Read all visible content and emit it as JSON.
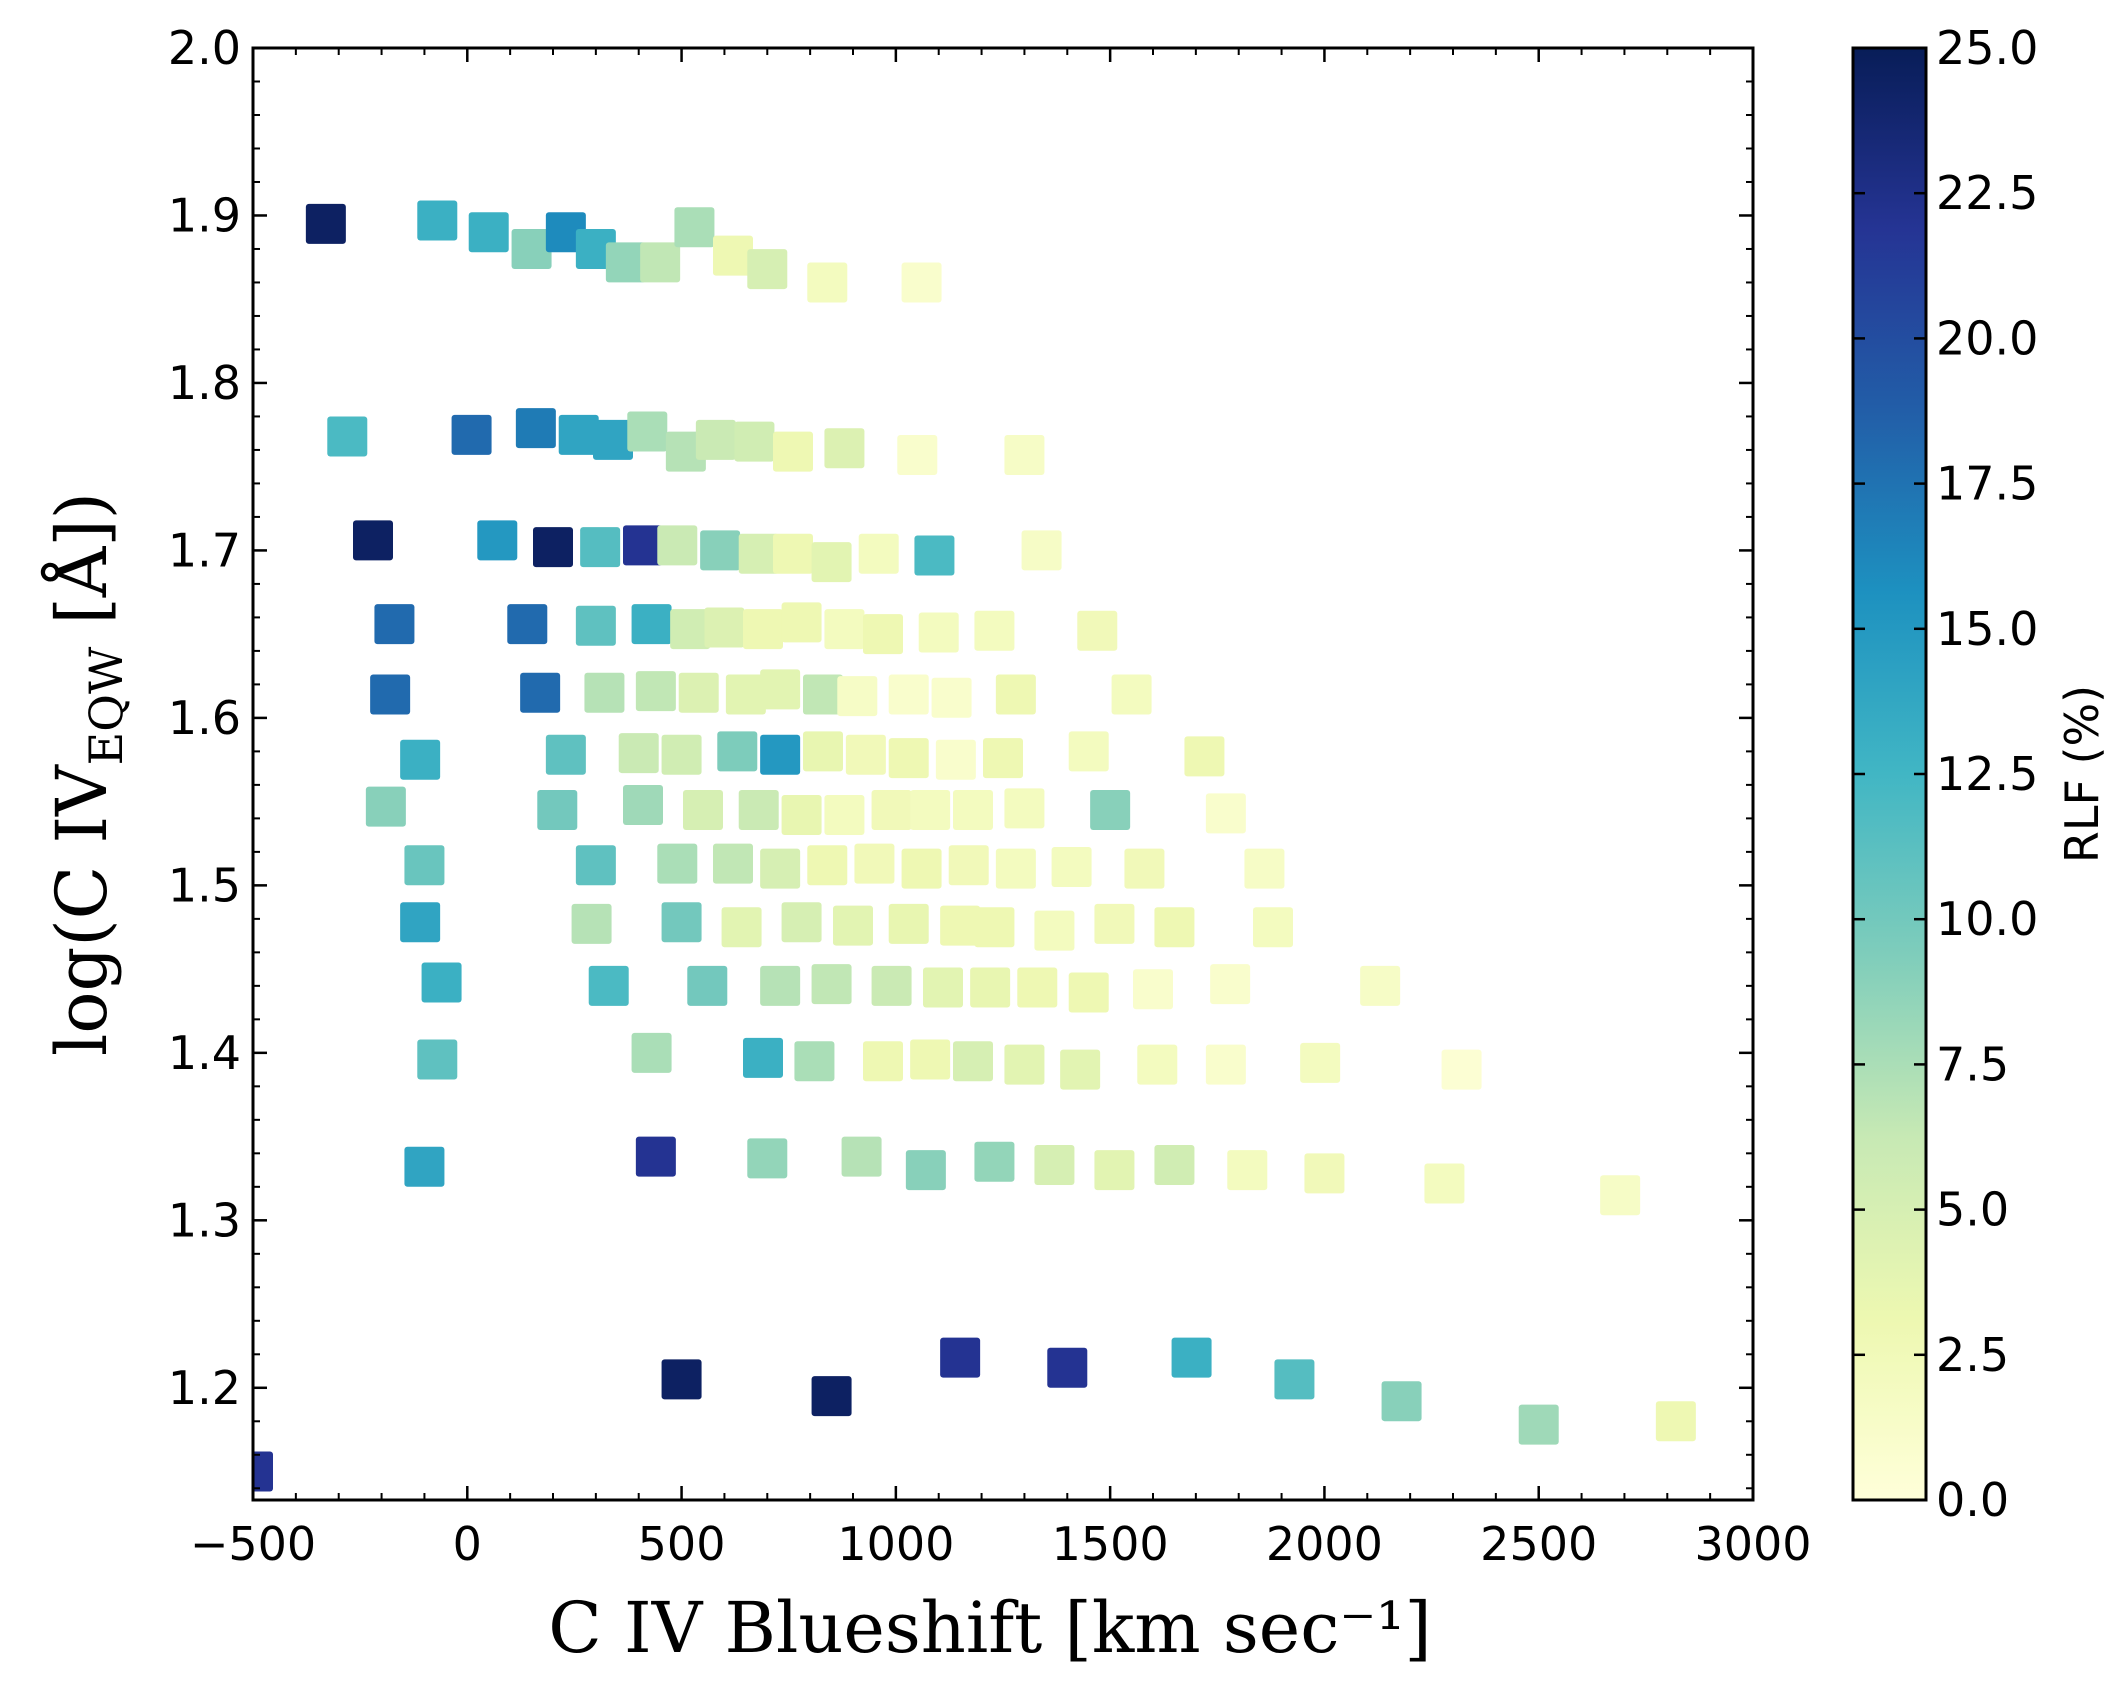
{
  "chart_data": {
    "type": "scatter",
    "xlabel": "C IV Blueshift [km sec⁻¹]",
    "ylabel": "log(C IV_EQW [Å])",
    "ylabel_main": "log(C IV",
    "ylabel_sub": "EQW",
    "ylabel_tail": " [Å])",
    "xlim": [
      -500,
      3000
    ],
    "ylim": [
      1.133,
      2.0
    ],
    "xticks": [
      "−500",
      "0",
      "500",
      "1000",
      "1500",
      "2000",
      "2500",
      "3000"
    ],
    "xtick_values": [
      -500,
      0,
      500,
      1000,
      1500,
      2000,
      2500,
      3000
    ],
    "yticks": [
      "1.2",
      "1.3",
      "1.4",
      "1.5",
      "1.6",
      "1.7",
      "1.8",
      "1.9",
      "2.0"
    ],
    "ytick_values": [
      1.2,
      1.3,
      1.4,
      1.5,
      1.6,
      1.7,
      1.8,
      1.9,
      2.0
    ],
    "grid": false,
    "marker": "square",
    "colorbar": {
      "label": "RLF (%)",
      "min": 0,
      "max": 25,
      "ticks": [
        "0.0",
        "2.5",
        "5.0",
        "7.5",
        "10.0",
        "12.5",
        "15.0",
        "17.5",
        "20.0",
        "22.5",
        "25.0"
      ],
      "tick_values": [
        0,
        2.5,
        5,
        7.5,
        10,
        12.5,
        15,
        17.5,
        20,
        22.5,
        25
      ],
      "colormap": [
        "#ffffd9",
        "#edf8b1",
        "#c7e9b4",
        "#7fcdbb",
        "#41b6c4",
        "#1d91c0",
        "#225ea8",
        "#253494",
        "#081d58"
      ]
    },
    "points": [
      {
        "x": -330,
        "y": 1.895,
        "c": 24.5
      },
      {
        "x": -70,
        "y": 1.897,
        "c": 13
      },
      {
        "x": 50,
        "y": 1.89,
        "c": 13
      },
      {
        "x": 150,
        "y": 1.88,
        "c": 9
      },
      {
        "x": 230,
        "y": 1.89,
        "c": 16
      },
      {
        "x": 300,
        "y": 1.88,
        "c": 13
      },
      {
        "x": 370,
        "y": 1.872,
        "c": 8.5
      },
      {
        "x": 450,
        "y": 1.872,
        "c": 6.5
      },
      {
        "x": 530,
        "y": 1.893,
        "c": 7.5
      },
      {
        "x": 620,
        "y": 1.876,
        "c": 3
      },
      {
        "x": 700,
        "y": 1.868,
        "c": 5
      },
      {
        "x": 840,
        "y": 1.86,
        "c": 2
      },
      {
        "x": 1060,
        "y": 1.86,
        "c": 1
      },
      {
        "x": -280,
        "y": 1.768,
        "c": 12
      },
      {
        "x": 10,
        "y": 1.769,
        "c": 18
      },
      {
        "x": 160,
        "y": 1.773,
        "c": 17
      },
      {
        "x": 260,
        "y": 1.769,
        "c": 14
      },
      {
        "x": 340,
        "y": 1.766,
        "c": 14
      },
      {
        "x": 420,
        "y": 1.771,
        "c": 7.5
      },
      {
        "x": 510,
        "y": 1.759,
        "c": 7
      },
      {
        "x": 580,
        "y": 1.766,
        "c": 6
      },
      {
        "x": 670,
        "y": 1.765,
        "c": 5.5
      },
      {
        "x": 760,
        "y": 1.759,
        "c": 3
      },
      {
        "x": 880,
        "y": 1.761,
        "c": 4.5
      },
      {
        "x": 1050,
        "y": 1.757,
        "c": 1
      },
      {
        "x": 1300,
        "y": 1.757,
        "c": 1.5
      },
      {
        "x": -220,
        "y": 1.706,
        "c": 24.5
      },
      {
        "x": 70,
        "y": 1.706,
        "c": 15
      },
      {
        "x": 200,
        "y": 1.702,
        "c": 24.5
      },
      {
        "x": 310,
        "y": 1.702,
        "c": 11.5
      },
      {
        "x": 410,
        "y": 1.703,
        "c": 22
      },
      {
        "x": 490,
        "y": 1.703,
        "c": 6
      },
      {
        "x": 590,
        "y": 1.7,
        "c": 9
      },
      {
        "x": 680,
        "y": 1.698,
        "c": 5
      },
      {
        "x": 760,
        "y": 1.698,
        "c": 3
      },
      {
        "x": 850,
        "y": 1.693,
        "c": 4
      },
      {
        "x": 960,
        "y": 1.698,
        "c": 2
      },
      {
        "x": 1090,
        "y": 1.697,
        "c": 12
      },
      {
        "x": 1340,
        "y": 1.7,
        "c": 1.5
      },
      {
        "x": -170,
        "y": 1.656,
        "c": 18
      },
      {
        "x": 140,
        "y": 1.656,
        "c": 18
      },
      {
        "x": 300,
        "y": 1.655,
        "c": 11
      },
      {
        "x": 430,
        "y": 1.656,
        "c": 13
      },
      {
        "x": 520,
        "y": 1.653,
        "c": 5.5
      },
      {
        "x": 600,
        "y": 1.654,
        "c": 4.5
      },
      {
        "x": 690,
        "y": 1.653,
        "c": 3
      },
      {
        "x": 780,
        "y": 1.657,
        "c": 3
      },
      {
        "x": 880,
        "y": 1.653,
        "c": 2
      },
      {
        "x": 970,
        "y": 1.65,
        "c": 3
      },
      {
        "x": 1100,
        "y": 1.651,
        "c": 2
      },
      {
        "x": 1230,
        "y": 1.652,
        "c": 2
      },
      {
        "x": 1470,
        "y": 1.652,
        "c": 2.5
      },
      {
        "x": -180,
        "y": 1.614,
        "c": 18
      },
      {
        "x": 170,
        "y": 1.615,
        "c": 18
      },
      {
        "x": 320,
        "y": 1.615,
        "c": 7
      },
      {
        "x": 440,
        "y": 1.616,
        "c": 6.5
      },
      {
        "x": 540,
        "y": 1.615,
        "c": 4.5
      },
      {
        "x": 650,
        "y": 1.614,
        "c": 4
      },
      {
        "x": 730,
        "y": 1.617,
        "c": 4
      },
      {
        "x": 830,
        "y": 1.614,
        "c": 6.5
      },
      {
        "x": 910,
        "y": 1.613,
        "c": 1.5
      },
      {
        "x": 1030,
        "y": 1.614,
        "c": 1
      },
      {
        "x": 1130,
        "y": 1.612,
        "c": 1
      },
      {
        "x": 1280,
        "y": 1.614,
        "c": 3
      },
      {
        "x": 1550,
        "y": 1.614,
        "c": 2
      },
      {
        "x": -110,
        "y": 1.575,
        "c": 13
      },
      {
        "x": 230,
        "y": 1.578,
        "c": 11
      },
      {
        "x": 400,
        "y": 1.579,
        "c": 6
      },
      {
        "x": 500,
        "y": 1.578,
        "c": 5.5
      },
      {
        "x": 630,
        "y": 1.58,
        "c": 9.5
      },
      {
        "x": 730,
        "y": 1.578,
        "c": 15
      },
      {
        "x": 830,
        "y": 1.58,
        "c": 3.5
      },
      {
        "x": 930,
        "y": 1.578,
        "c": 2.5
      },
      {
        "x": 1030,
        "y": 1.576,
        "c": 3
      },
      {
        "x": 1140,
        "y": 1.575,
        "c": 1
      },
      {
        "x": 1250,
        "y": 1.576,
        "c": 3
      },
      {
        "x": 1450,
        "y": 1.58,
        "c": 2
      },
      {
        "x": 1720,
        "y": 1.577,
        "c": 3
      },
      {
        "x": -190,
        "y": 1.547,
        "c": 9
      },
      {
        "x": 210,
        "y": 1.545,
        "c": 10
      },
      {
        "x": 410,
        "y": 1.548,
        "c": 8
      },
      {
        "x": 550,
        "y": 1.545,
        "c": 5
      },
      {
        "x": 680,
        "y": 1.545,
        "c": 6
      },
      {
        "x": 780,
        "y": 1.542,
        "c": 3.5
      },
      {
        "x": 880,
        "y": 1.542,
        "c": 2
      },
      {
        "x": 990,
        "y": 1.545,
        "c": 2.5
      },
      {
        "x": 1080,
        "y": 1.545,
        "c": 2
      },
      {
        "x": 1180,
        "y": 1.545,
        "c": 2
      },
      {
        "x": 1300,
        "y": 1.546,
        "c": 2
      },
      {
        "x": 1500,
        "y": 1.545,
        "c": 9
      },
      {
        "x": 1770,
        "y": 1.543,
        "c": 1
      },
      {
        "x": -100,
        "y": 1.512,
        "c": 10.5
      },
      {
        "x": 300,
        "y": 1.512,
        "c": 11
      },
      {
        "x": 490,
        "y": 1.513,
        "c": 7.5
      },
      {
        "x": 620,
        "y": 1.513,
        "c": 6.5
      },
      {
        "x": 730,
        "y": 1.51,
        "c": 5
      },
      {
        "x": 840,
        "y": 1.512,
        "c": 3
      },
      {
        "x": 950,
        "y": 1.513,
        "c": 2.5
      },
      {
        "x": 1060,
        "y": 1.51,
        "c": 3
      },
      {
        "x": 1170,
        "y": 1.512,
        "c": 2.5
      },
      {
        "x": 1280,
        "y": 1.51,
        "c": 2
      },
      {
        "x": 1410,
        "y": 1.511,
        "c": 2
      },
      {
        "x": 1580,
        "y": 1.51,
        "c": 2.5
      },
      {
        "x": 1860,
        "y": 1.51,
        "c": 1.5
      },
      {
        "x": -110,
        "y": 1.478,
        "c": 14
      },
      {
        "x": 290,
        "y": 1.477,
        "c": 7
      },
      {
        "x": 500,
        "y": 1.478,
        "c": 10
      },
      {
        "x": 640,
        "y": 1.475,
        "c": 4
      },
      {
        "x": 780,
        "y": 1.478,
        "c": 5
      },
      {
        "x": 900,
        "y": 1.476,
        "c": 4
      },
      {
        "x": 1030,
        "y": 1.477,
        "c": 3.5
      },
      {
        "x": 1150,
        "y": 1.476,
        "c": 3
      },
      {
        "x": 1230,
        "y": 1.475,
        "c": 3
      },
      {
        "x": 1370,
        "y": 1.473,
        "c": 2
      },
      {
        "x": 1510,
        "y": 1.477,
        "c": 2.5
      },
      {
        "x": 1650,
        "y": 1.475,
        "c": 3
      },
      {
        "x": 1880,
        "y": 1.475,
        "c": 2
      },
      {
        "x": -60,
        "y": 1.442,
        "c": 13
      },
      {
        "x": 330,
        "y": 1.44,
        "c": 12
      },
      {
        "x": 560,
        "y": 1.44,
        "c": 10
      },
      {
        "x": 730,
        "y": 1.44,
        "c": 7
      },
      {
        "x": 850,
        "y": 1.441,
        "c": 6.5
      },
      {
        "x": 990,
        "y": 1.44,
        "c": 6
      },
      {
        "x": 1110,
        "y": 1.439,
        "c": 4
      },
      {
        "x": 1220,
        "y": 1.439,
        "c": 3.5
      },
      {
        "x": 1330,
        "y": 1.439,
        "c": 3
      },
      {
        "x": 1450,
        "y": 1.436,
        "c": 3
      },
      {
        "x": 1600,
        "y": 1.438,
        "c": 1
      },
      {
        "x": 1780,
        "y": 1.441,
        "c": 1
      },
      {
        "x": 2130,
        "y": 1.44,
        "c": 1.5
      },
      {
        "x": -70,
        "y": 1.396,
        "c": 11
      },
      {
        "x": 430,
        "y": 1.4,
        "c": 7.5
      },
      {
        "x": 690,
        "y": 1.397,
        "c": 13
      },
      {
        "x": 810,
        "y": 1.395,
        "c": 7.5
      },
      {
        "x": 970,
        "y": 1.395,
        "c": 3
      },
      {
        "x": 1080,
        "y": 1.396,
        "c": 3
      },
      {
        "x": 1180,
        "y": 1.395,
        "c": 5
      },
      {
        "x": 1300,
        "y": 1.393,
        "c": 4
      },
      {
        "x": 1430,
        "y": 1.39,
        "c": 4
      },
      {
        "x": 1610,
        "y": 1.393,
        "c": 2
      },
      {
        "x": 1770,
        "y": 1.393,
        "c": 1
      },
      {
        "x": 1990,
        "y": 1.394,
        "c": 2
      },
      {
        "x": 2320,
        "y": 1.39,
        "c": 0.5
      },
      {
        "x": -100,
        "y": 1.332,
        "c": 14
      },
      {
        "x": 440,
        "y": 1.338,
        "c": 22
      },
      {
        "x": 700,
        "y": 1.337,
        "c": 8.5
      },
      {
        "x": 920,
        "y": 1.338,
        "c": 7
      },
      {
        "x": 1070,
        "y": 1.33,
        "c": 9
      },
      {
        "x": 1230,
        "y": 1.335,
        "c": 8.5
      },
      {
        "x": 1370,
        "y": 1.333,
        "c": 5
      },
      {
        "x": 1510,
        "y": 1.33,
        "c": 4
      },
      {
        "x": 1650,
        "y": 1.333,
        "c": 5.5
      },
      {
        "x": 1820,
        "y": 1.33,
        "c": 2
      },
      {
        "x": 2000,
        "y": 1.328,
        "c": 2.5
      },
      {
        "x": 2280,
        "y": 1.322,
        "c": 2
      },
      {
        "x": 2690,
        "y": 1.315,
        "c": 1.5
      },
      {
        "x": 500,
        "y": 1.205,
        "c": 24.5
      },
      {
        "x": 850,
        "y": 1.195,
        "c": 24.5
      },
      {
        "x": 1150,
        "y": 1.218,
        "c": 22
      },
      {
        "x": 1400,
        "y": 1.212,
        "c": 22
      },
      {
        "x": 1690,
        "y": 1.218,
        "c": 13
      },
      {
        "x": 1930,
        "y": 1.205,
        "c": 11.5
      },
      {
        "x": 2180,
        "y": 1.192,
        "c": 9
      },
      {
        "x": 2500,
        "y": 1.178,
        "c": 8
      },
      {
        "x": 2820,
        "y": 1.18,
        "c": 3
      },
      {
        "x": -500,
        "y": 1.15,
        "c": 22
      }
    ]
  }
}
